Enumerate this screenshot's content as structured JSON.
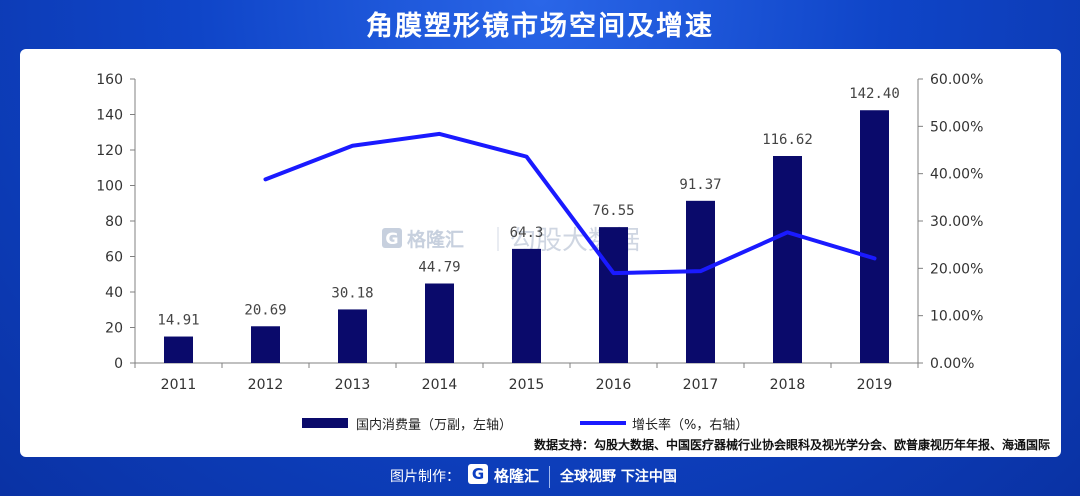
{
  "page_title": "角膜塑形镜市场空间及增速",
  "watermark": {
    "logo_letter": "G",
    "brand": "格隆汇",
    "text": "勾股大数据"
  },
  "footer": {
    "label": "图片制作：",
    "logo_letter": "G",
    "brand": "格隆汇",
    "slogan": "全球视野 下注中国"
  },
  "colors": {
    "bar": "#0a0a6b",
    "line": "#1a1aff",
    "background": "#0c3fc2",
    "panel": "#ffffff"
  },
  "chart_data": {
    "type": "bar",
    "categories": [
      "2011",
      "2012",
      "2013",
      "2014",
      "2015",
      "2016",
      "2017",
      "2018",
      "2019"
    ],
    "series": [
      {
        "name": "国内消费量（万副，左轴）",
        "type": "bar",
        "axis": "left",
        "values": [
          14.91,
          20.69,
          30.18,
          44.79,
          64.3,
          76.55,
          91.37,
          116.62,
          142.4
        ],
        "labels": [
          "14.91",
          "20.69",
          "30.18",
          "44.79",
          "64.3",
          "76.55",
          "91.37",
          "116.62",
          "142.40"
        ]
      },
      {
        "name": "增长率（%，右轴）",
        "type": "line",
        "axis": "right",
        "values": [
          null,
          38.8,
          45.9,
          48.4,
          43.6,
          19.0,
          19.4,
          27.6,
          22.1
        ]
      }
    ],
    "y_left": {
      "ylim": [
        0,
        160
      ],
      "ticks": [
        "0",
        "20",
        "40",
        "60",
        "80",
        "100",
        "120",
        "140",
        "160"
      ]
    },
    "y_right": {
      "ylim": [
        0,
        60
      ],
      "ticks": [
        "0.00%",
        "10.00%",
        "20.00%",
        "30.00%",
        "40.00%",
        "50.00%",
        "60.00%"
      ]
    },
    "grid": false,
    "legend_position": "bottom",
    "source": "数据支持：勾股大数据、中国医疗器械行业协会眼科及视光学分会、欧普康视历年年报、海通国际"
  }
}
